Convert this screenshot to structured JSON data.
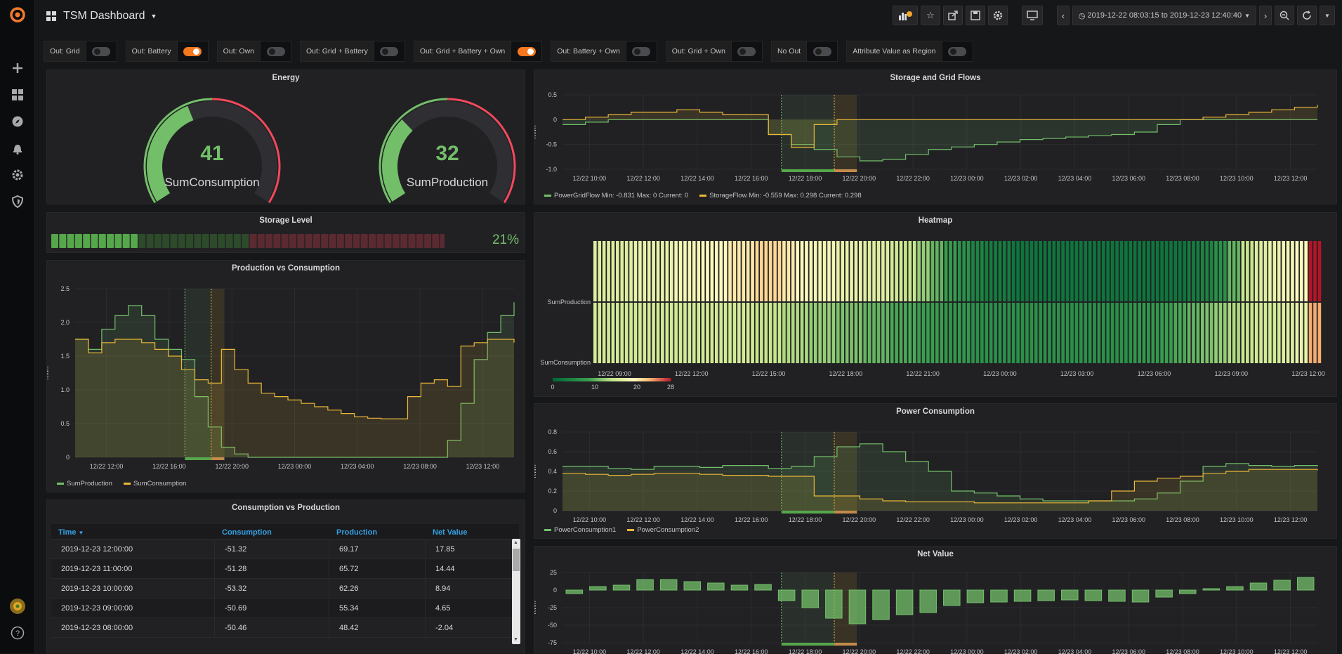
{
  "header": {
    "title": "TSM Dashboard",
    "time_range": "2019-12-22 08:03:15 to 2019-12-23 12:40:40"
  },
  "sidebar": {
    "items": [
      "grafana-logo-icon",
      "plus-icon",
      "dashboards-icon",
      "explore-icon",
      "bell-icon",
      "gear-icon",
      "shield-icon",
      "avatar-icon",
      "help-icon"
    ]
  },
  "toolbar": {
    "icons": [
      "add-panel-icon",
      "star-icon",
      "share-icon",
      "save-icon",
      "settings-icon",
      "tv-icon",
      "chevron-left-icon",
      "clock-icon",
      "chevron-right-icon",
      "zoom-out-icon",
      "refresh-icon",
      "caret-down-icon"
    ]
  },
  "variables": [
    {
      "label": "Out: Grid",
      "on": false
    },
    {
      "label": "Out: Battery",
      "on": true
    },
    {
      "label": "Out: Own",
      "on": false
    },
    {
      "label": "Out: Grid + Battery",
      "on": false
    },
    {
      "label": "Out: Grid + Battery + Own",
      "on": true
    },
    {
      "label": "Out: Battery + Own",
      "on": false
    },
    {
      "label": "Out: Grid + Own",
      "on": false
    },
    {
      "label": "No Out",
      "on": false
    },
    {
      "label": "Attribute Value as Region",
      "on": false
    }
  ],
  "energy": {
    "title": "Energy",
    "gauges": [
      {
        "value": "41",
        "label": "SumConsumption",
        "fraction": 0.41
      },
      {
        "value": "32",
        "label": "SumProduction",
        "fraction": 0.32
      }
    ],
    "colors": {
      "ok": "#73bf69",
      "bad": "#f2495c"
    }
  },
  "storage": {
    "title": "Storage Level",
    "percent": "21%",
    "fraction": 0.21
  },
  "prod_cons": {
    "title": "Production vs Consumption",
    "ylabel": "KWh",
    "legend": [
      {
        "name": "SumProduction",
        "color": "#73bf69"
      },
      {
        "name": "SumConsumption",
        "color": "#eab839"
      }
    ],
    "chart_data": {
      "type": "line",
      "x_ticks": [
        "12/22 12:00",
        "12/22 16:00",
        "12/22 20:00",
        "12/23 00:00",
        "12/23 04:00",
        "12/23 08:00",
        "12/23 12:00"
      ],
      "y_ticks": [
        "0",
        "0.5",
        "1.0",
        "1.5",
        "2.0",
        "2.5"
      ],
      "ylim": [
        0,
        2.5
      ],
      "series": [
        {
          "name": "SumProduction",
          "values": [
            1.75,
            1.6,
            1.9,
            2.1,
            2.25,
            2.1,
            1.75,
            1.6,
            1.45,
            0.9,
            0.45,
            0.15,
            0.05,
            0,
            0,
            0,
            0,
            0,
            0,
            0,
            0,
            0,
            0,
            0,
            0,
            0,
            0,
            0,
            0.25,
            0.8,
            1.45,
            1.85,
            2.1,
            2.3
          ]
        },
        {
          "name": "SumConsumption",
          "values": [
            1.75,
            1.55,
            1.7,
            1.75,
            1.75,
            1.7,
            1.6,
            1.5,
            1.3,
            1.15,
            1.1,
            1.6,
            1.3,
            1.1,
            0.95,
            0.9,
            0.85,
            0.8,
            0.75,
            0.7,
            0.65,
            0.6,
            0.58,
            0.57,
            0.57,
            0.9,
            1.1,
            1.15,
            1.05,
            1.65,
            1.7,
            1.75,
            1.75,
            1.7
          ]
        }
      ]
    }
  },
  "cons_table": {
    "title": "Consumption vs Production",
    "headers": [
      "Time",
      "Consumption",
      "Production",
      "Net Value"
    ],
    "rows": [
      [
        "2019-12-23 12:00:00",
        "-51.32",
        "69.17",
        "17.85"
      ],
      [
        "2019-12-23 11:00:00",
        "-51.28",
        "65.72",
        "14.44"
      ],
      [
        "2019-12-23 10:00:00",
        "-53.32",
        "62.26",
        "8.94"
      ],
      [
        "2019-12-23 09:00:00",
        "-50.69",
        "55.34",
        "4.65"
      ],
      [
        "2019-12-23 08:00:00",
        "-50.46",
        "48.42",
        "-2.04"
      ]
    ]
  },
  "storage_grid": {
    "title": "Storage and Grid Flows",
    "ylabel": "KWh",
    "legend": [
      {
        "text": "PowerGridFlow  Min: -0.831  Max: 0  Current: 0",
        "color": "#73bf69"
      },
      {
        "text": "StorageFlow  Min: -0.559  Max: 0.298  Current: 0.298",
        "color": "#eab839"
      }
    ],
    "chart_data": {
      "type": "line",
      "x_ticks": [
        "12/22 10:00",
        "12/22 12:00",
        "12/22 14:00",
        "12/22 16:00",
        "12/22 18:00",
        "12/22 20:00",
        "12/22 22:00",
        "12/23 00:00",
        "12/23 02:00",
        "12/23 04:00",
        "12/23 06:00",
        "12/23 08:00",
        "12/23 10:00",
        "12/23 12:00"
      ],
      "y_ticks": [
        "0.5",
        "0",
        "-0.5",
        "-1.0"
      ],
      "ylim": [
        -1.0,
        0.5
      ],
      "series": [
        {
          "name": "PowerGridFlow",
          "values": [
            -0.1,
            -0.05,
            0,
            0,
            0,
            0,
            0,
            0,
            0,
            -0.3,
            -0.5,
            -0.6,
            -0.75,
            -0.83,
            -0.8,
            -0.7,
            -0.6,
            -0.55,
            -0.5,
            -0.45,
            -0.4,
            -0.38,
            -0.35,
            -0.32,
            -0.3,
            -0.25,
            -0.1,
            0,
            0,
            0,
            0,
            0,
            0,
            0
          ]
        },
        {
          "name": "StorageFlow",
          "values": [
            0,
            0.05,
            0.1,
            0.15,
            0.15,
            0.2,
            0.15,
            0.1,
            0.1,
            -0.3,
            -0.56,
            -0.1,
            0,
            0,
            0,
            0,
            0,
            0,
            0,
            0,
            0,
            0,
            0,
            0,
            0,
            0,
            0,
            0,
            0.05,
            0.1,
            0.15,
            0.2,
            0.25,
            0.3
          ]
        }
      ]
    }
  },
  "heatmap": {
    "title": "Heatmap",
    "rows": [
      "SumProduction",
      "SumConsumption"
    ],
    "x_ticks": [
      "12/22 09:00",
      "12/22 12:00",
      "12/22 15:00",
      "12/22 18:00",
      "12/22 21:00",
      "12/23 00:00",
      "12/23 03:00",
      "12/23 06:00",
      "12/23 09:00",
      "12/23 12:00"
    ],
    "scale_ticks": [
      "0",
      "10",
      "20",
      "28"
    ],
    "chart_data": {
      "type": "heatmap",
      "range": [
        0,
        28
      ],
      "top": [
        16,
        16,
        16,
        17,
        17,
        17,
        18,
        18,
        19,
        19,
        20,
        20,
        21,
        21,
        20,
        19,
        18,
        18,
        17,
        17,
        16,
        16,
        15,
        14,
        12,
        10,
        8,
        6,
        4,
        3,
        3,
        2,
        2,
        2,
        2,
        2,
        2,
        2,
        2,
        2,
        2,
        2,
        2,
        2,
        3,
        4,
        6,
        10,
        14,
        16,
        17,
        18,
        19,
        28
      ],
      "bottom": [
        15,
        15,
        15,
        15,
        15,
        15,
        15,
        15,
        15,
        15,
        15,
        15,
        14,
        14,
        13,
        13,
        12,
        12,
        11,
        11,
        10,
        10,
        9,
        9,
        8,
        8,
        7,
        7,
        6,
        6,
        6,
        6,
        6,
        6,
        6,
        6,
        6,
        6,
        6,
        6,
        7,
        7,
        8,
        9,
        10,
        11,
        12,
        13,
        14,
        15,
        15,
        16,
        17,
        23
      ]
    }
  },
  "power_cons": {
    "title": "Power Consumption",
    "ylabel": "KWh",
    "legend": [
      {
        "name": "PowerConsumption1",
        "color": "#73bf69"
      },
      {
        "name": "PowerConsumption2",
        "color": "#eab839"
      }
    ],
    "chart_data": {
      "type": "line",
      "x_ticks": [
        "12/22 10:00",
        "12/22 12:00",
        "12/22 14:00",
        "12/22 16:00",
        "12/22 18:00",
        "12/22 20:00",
        "12/22 22:00",
        "12/23 00:00",
        "12/23 02:00",
        "12/23 04:00",
        "12/23 06:00",
        "12/23 08:00",
        "12/23 10:00",
        "12/23 12:00"
      ],
      "y_ticks": [
        "0.8",
        "0.6",
        "0.4",
        "0.2",
        "0"
      ],
      "ylim": [
        0,
        0.8
      ],
      "series": [
        {
          "name": "PowerConsumption1",
          "values": [
            0.45,
            0.45,
            0.43,
            0.42,
            0.45,
            0.45,
            0.44,
            0.46,
            0.46,
            0.43,
            0.45,
            0.55,
            0.65,
            0.68,
            0.6,
            0.5,
            0.4,
            0.2,
            0.18,
            0.15,
            0.12,
            0.1,
            0.1,
            0.1,
            0.1,
            0.12,
            0.18,
            0.3,
            0.45,
            0.48,
            0.46,
            0.45,
            0.46,
            0.45
          ]
        },
        {
          "name": "PowerConsumption2",
          "values": [
            0.38,
            0.37,
            0.36,
            0.37,
            0.38,
            0.38,
            0.37,
            0.36,
            0.36,
            0.35,
            0.35,
            0.15,
            0.15,
            0.12,
            0.1,
            0.09,
            0.09,
            0.09,
            0.08,
            0.08,
            0.08,
            0.08,
            0.08,
            0.1,
            0.2,
            0.3,
            0.33,
            0.35,
            0.38,
            0.4,
            0.42,
            0.42,
            0.42,
            0.41
          ]
        }
      ]
    }
  },
  "net_value": {
    "title": "Net Value",
    "ylabel": "KWh",
    "chart_data": {
      "type": "bar",
      "x_ticks": [
        "12/22 10:00",
        "12/22 12:00",
        "12/22 14:00",
        "12/22 16:00",
        "12/22 18:00",
        "12/22 20:00",
        "12/22 22:00",
        "12/23 00:00",
        "12/23 02:00",
        "12/23 04:00",
        "12/23 06:00",
        "12/23 08:00",
        "12/23 10:00",
        "12/23 12:00"
      ],
      "y_ticks": [
        "25",
        "0",
        "-25",
        "-50",
        "-75"
      ],
      "ylim": [
        -75,
        25
      ],
      "values": [
        -5,
        5,
        7,
        15,
        15,
        12,
        10,
        7,
        8,
        -15,
        -25,
        -40,
        -48,
        -42,
        -35,
        -32,
        -22,
        -18,
        -17,
        -16,
        -15,
        -14,
        -15,
        -16,
        -17,
        -10,
        -5,
        2,
        5,
        10,
        14,
        18
      ]
    }
  }
}
